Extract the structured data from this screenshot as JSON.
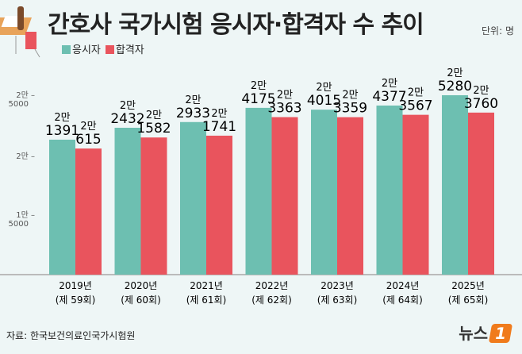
{
  "chart_data": {
    "type": "bar",
    "title": "간호사 국가시험 응시자·합격자 수 추이",
    "unit": "단위: 명",
    "categories": [
      "2019년",
      "2020년",
      "2021년",
      "2022년",
      "2023년",
      "2024년",
      "2025년"
    ],
    "subcategories": [
      "(제 59회)",
      "(제 60회)",
      "(제 61회)",
      "(제 62회)",
      "(제 63회)",
      "(제 64회)",
      "(제 65회)"
    ],
    "series": [
      {
        "name": "응시자",
        "color": "#6dbfb1",
        "values": [
          21391,
          22432,
          22933,
          24175,
          24015,
          24377,
          25280
        ],
        "labels_top": [
          "2만",
          "2만",
          "2만",
          "2만",
          "2만",
          "2만",
          "2만"
        ],
        "labels_bottom": [
          "1391",
          "2432",
          "2933",
          "4175",
          "4015",
          "4377",
          "5280"
        ]
      },
      {
        "name": "합격자",
        "color": "#e9545d",
        "values": [
          20615,
          21582,
          21741,
          23363,
          23359,
          23567,
          23760
        ],
        "labels_top": [
          "2만",
          "2만",
          "2만",
          "2만",
          "2만",
          "2만",
          "2만"
        ],
        "labels_bottom": [
          "615",
          "1582",
          "1741",
          "3363",
          "3359",
          "3567",
          "3760"
        ]
      }
    ],
    "yticks": [
      {
        "value": 25000,
        "l1": "2만",
        "l2": "5000"
      },
      {
        "value": 20000,
        "l1": "2만",
        "l2": ""
      },
      {
        "value": 15000,
        "l1": "1만",
        "l2": "5000"
      }
    ],
    "grid": false,
    "legend": "top-left"
  },
  "source": "자료: 한국보건의료인국가시험원",
  "logo": "뉴스1"
}
